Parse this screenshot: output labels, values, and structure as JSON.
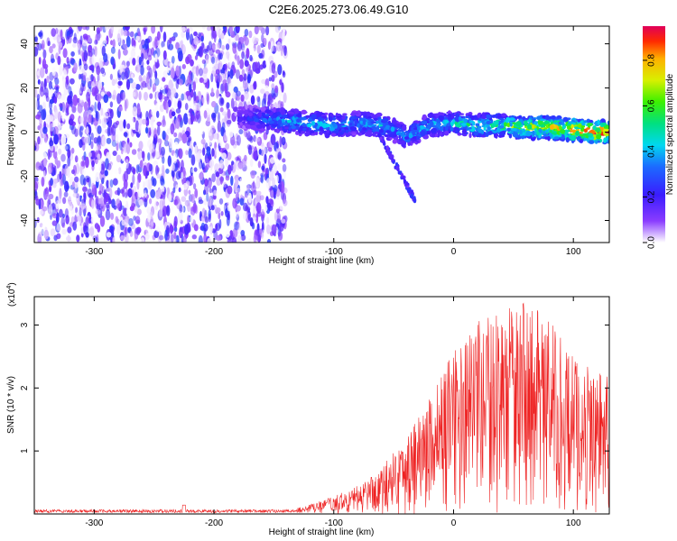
{
  "figure_title": "C2E6.2025.273.06.49.G10",
  "colors": {
    "snr_line": "#ee2222",
    "axis": "#000000",
    "background": "#ffffff"
  },
  "chart_data": [
    {
      "type": "heatmap",
      "title": "C2E6.2025.273.06.49.G10",
      "xlabel": "Height of straight line (km)",
      "ylabel": "Frequency (Hz)",
      "xlim": [
        -350,
        130
      ],
      "ylim": [
        -50,
        48
      ],
      "xticks": [
        -300,
        -200,
        -100,
        0,
        100
      ],
      "xtick_labels": [
        "-300",
        "-200",
        "-100",
        "0",
        "100"
      ],
      "yticks": [
        -40,
        -20,
        0,
        20,
        40
      ],
      "ytick_labels": [
        "-40",
        "-20",
        "0",
        "20",
        "40"
      ],
      "noise_region_x": [
        -350,
        -140
      ],
      "signal_ridge": {
        "x": [
          -180,
          -140,
          -100,
          -80,
          -60,
          -50,
          -40,
          -20,
          0,
          20,
          40,
          60,
          80,
          100,
          120,
          130
        ],
        "freq": [
          7,
          5,
          3,
          4,
          3,
          1,
          -2,
          3,
          4,
          3,
          3,
          2,
          2,
          1,
          0,
          0
        ],
        "amplitude": [
          0.2,
          0.45,
          0.45,
          0.4,
          0.5,
          0.35,
          0.4,
          0.45,
          0.5,
          0.55,
          0.6,
          0.75,
          0.8,
          0.85,
          0.95,
          0.95
        ]
      },
      "colorbar": {
        "label": "Normalized spectral amplitude",
        "range": [
          0.0,
          0.95
        ],
        "ticks": [
          0.0,
          0.2,
          0.4,
          0.6,
          0.8
        ],
        "tick_labels": [
          "0.0",
          "0.2",
          "0.4",
          "0.6",
          "0.8"
        ]
      }
    },
    {
      "type": "line",
      "title": "",
      "xlabel": "Height of straight line (km)",
      "ylabel": "SNR (10 * v/v)",
      "y_multiplier_label": "(x10",
      "y_multiplier_exponent": "4",
      "y_multiplier_close": ")",
      "xlim": [
        -350,
        130
      ],
      "ylim": [
        0,
        3.45
      ],
      "xticks": [
        -300,
        -200,
        -100,
        0,
        100
      ],
      "xtick_labels": [
        "-300",
        "-200",
        "-100",
        "0",
        "100"
      ],
      "yticks": [
        1,
        2,
        3
      ],
      "ytick_labels": [
        "1",
        "2",
        "3"
      ],
      "series": [
        {
          "name": "SNR",
          "envelope_x": [
            -350,
            -150,
            -120,
            -100,
            -80,
            -60,
            -40,
            -20,
            0,
            20,
            40,
            60,
            80,
            100,
            130
          ],
          "envelope_y": [
            0.04,
            0.06,
            0.15,
            0.28,
            0.45,
            0.75,
            1.25,
            1.9,
            2.6,
            3.05,
            3.25,
            3.4,
            3.1,
            2.5,
            2.2
          ]
        }
      ]
    }
  ]
}
